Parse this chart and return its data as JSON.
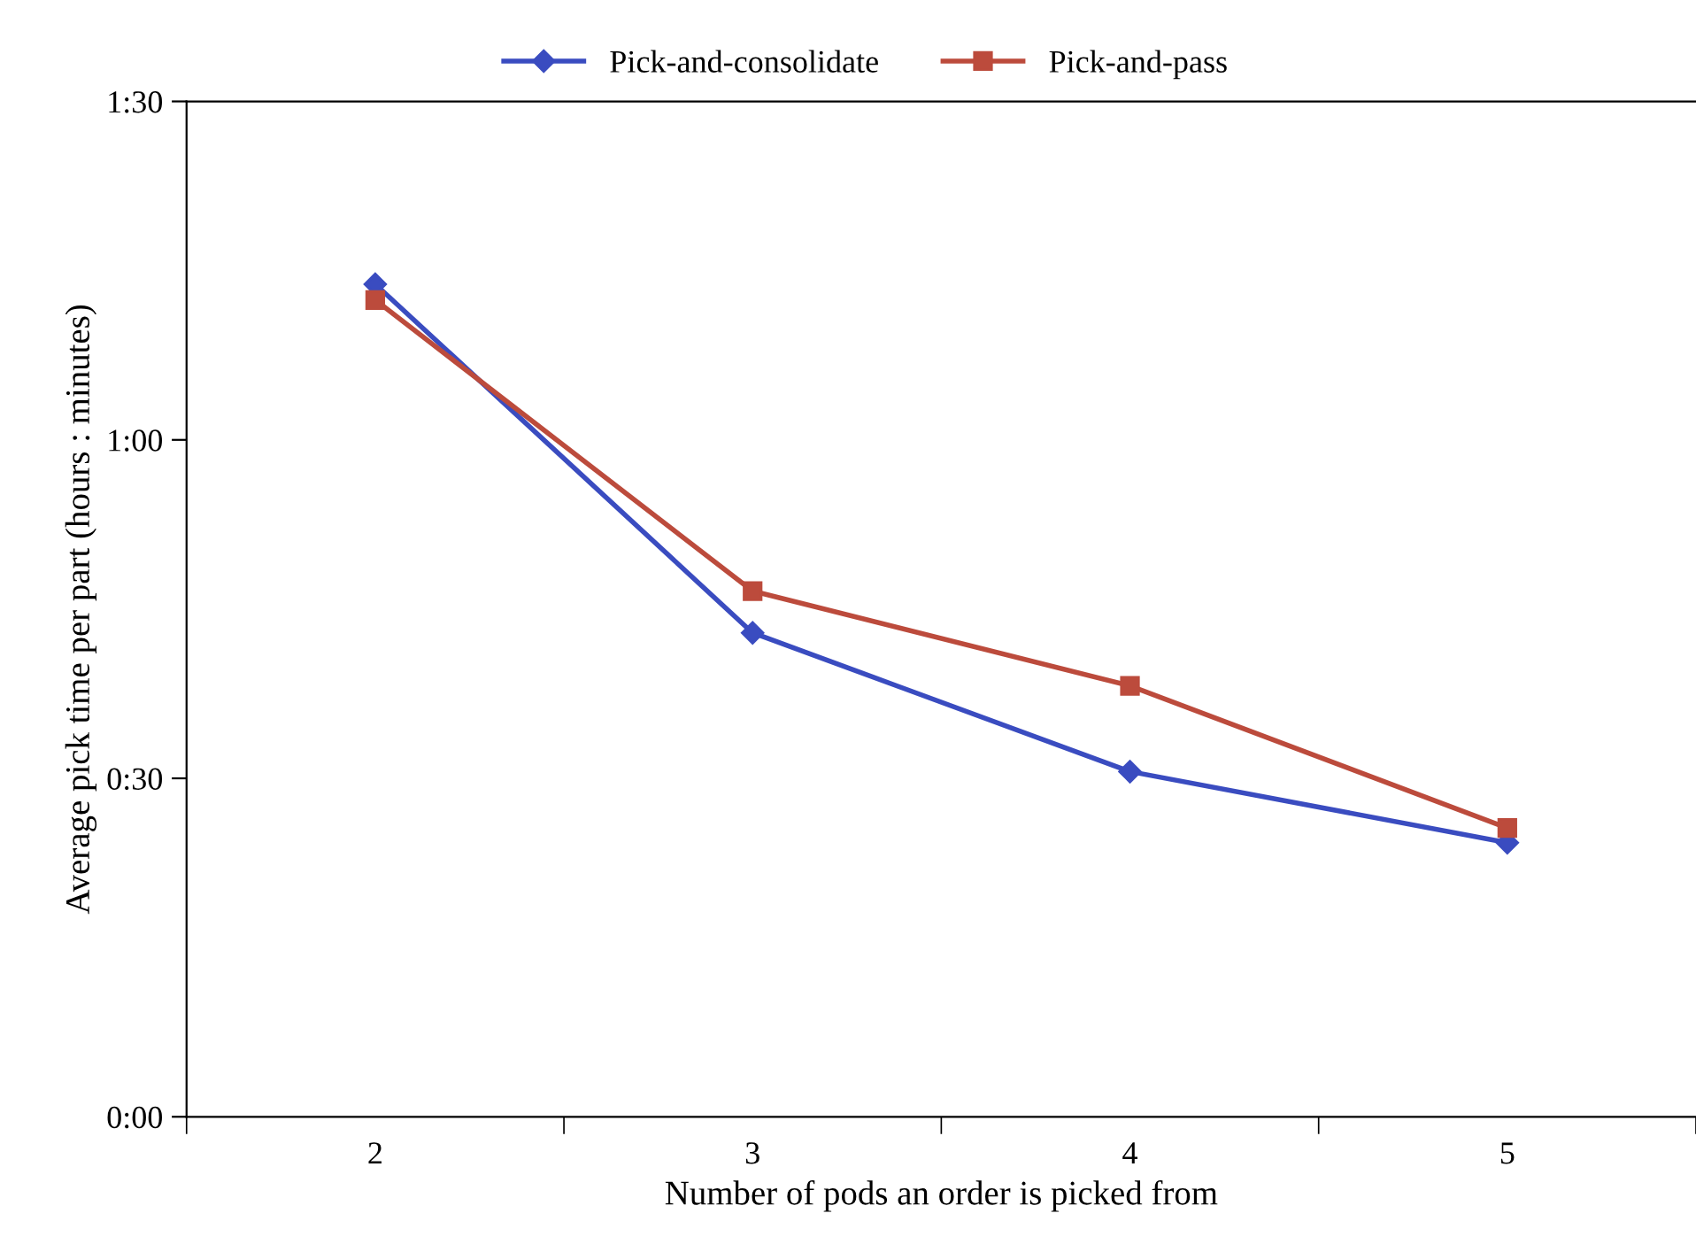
{
  "chart_data": {
    "type": "line",
    "xlabel": "Number of pods an order is picked from",
    "ylabel": "Average pick time per part (hours : minutes)",
    "categories": [
      "2",
      "3",
      "4",
      "5"
    ],
    "series": [
      {
        "name": "Pick-and-consolidate",
        "color": "#3a4cc0",
        "marker": "diamond",
        "values": [
          73.8,
          42.9,
          30.6,
          24.3
        ]
      },
      {
        "name": "Pick-and-pass",
        "color": "#bc4b3c",
        "marker": "square",
        "values": [
          72.4,
          46.6,
          38.2,
          25.6
        ]
      }
    ],
    "ylim": [
      0,
      90
    ],
    "yticks": [
      {
        "value": 0,
        "label": "0:00"
      },
      {
        "value": 30,
        "label": "0:30"
      },
      {
        "value": 60,
        "label": "1:00"
      },
      {
        "value": 90,
        "label": "1:30"
      }
    ],
    "grid": false,
    "legend": "top",
    "line_style": "solid"
  }
}
